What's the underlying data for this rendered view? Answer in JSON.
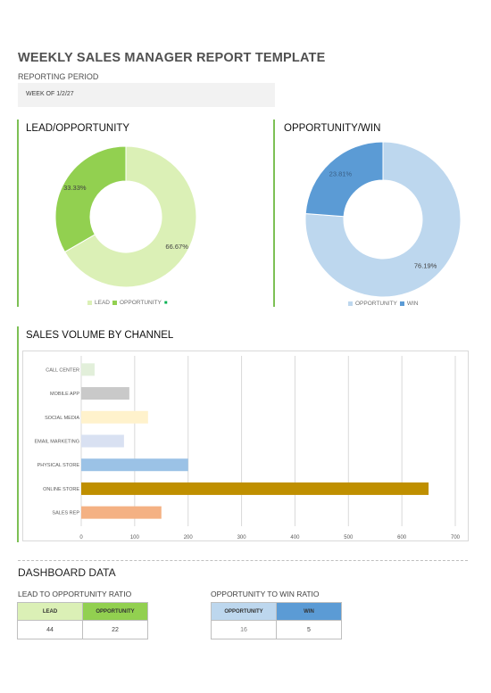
{
  "report": {
    "title": "WEEKLY SALES MANAGER REPORT TEMPLATE",
    "period_label": "REPORTING PERIOD",
    "period_value": "WEEK OF 1/2/27"
  },
  "chart_data": [
    {
      "type": "pie",
      "title": "LEAD/OPPORTUNITY",
      "categories": [
        "LEAD",
        "OPPORTUNITY"
      ],
      "values": [
        66.67,
        33.33
      ],
      "labels": [
        "66.67%",
        "33.33%"
      ],
      "colors": [
        "#dbf0b6",
        "#92d050"
      ],
      "legend": "bottom"
    },
    {
      "type": "pie",
      "title": "OPPORTUNITY/WIN",
      "categories": [
        "OPPORTUNITY",
        "WIN"
      ],
      "values": [
        76.19,
        23.81
      ],
      "labels": [
        "76.19%",
        "23.81%"
      ],
      "colors": [
        "#bdd7ee",
        "#5b9bd5"
      ],
      "legend": "bottom"
    },
    {
      "type": "bar",
      "title": "SALES VOLUME BY CHANNEL",
      "orientation": "horizontal",
      "categories": [
        "CALL CENTER",
        "MOBILE APP",
        "SOCIAL MEDIA",
        "EMAIL MARKETING",
        "PHYSICAL STORE",
        "ONLINE STORE",
        "SALES REP"
      ],
      "values": [
        25,
        90,
        125,
        80,
        200,
        650,
        150
      ],
      "colors": [
        "#e2efda",
        "#c9c9c9",
        "#fff2cc",
        "#d9e1f2",
        "#9bc2e6",
        "#bf8f00",
        "#f4b183"
      ],
      "xlim": [
        0,
        700
      ],
      "xticks": [
        0,
        100,
        200,
        300,
        400,
        500,
        600,
        700
      ],
      "grid": true
    }
  ],
  "legend_marker": "■",
  "dashboard": {
    "title": "DASHBOARD DATA",
    "lead_opp": {
      "title": "LEAD TO OPPORTUNITY RATIO",
      "headers": [
        "LEAD",
        "OPPORTUNITY"
      ],
      "values": [
        "44",
        "22"
      ],
      "header_colors": [
        "#dbf0b6",
        "#92d050"
      ]
    },
    "opp_win": {
      "title": "OPPORTUNITY TO WIN RATIO",
      "headers": [
        "OPPORTUNITY",
        "WIN"
      ],
      "values": [
        "16",
        "5"
      ],
      "header_colors": [
        "#bdd7ee",
        "#5b9bd5"
      ]
    }
  }
}
